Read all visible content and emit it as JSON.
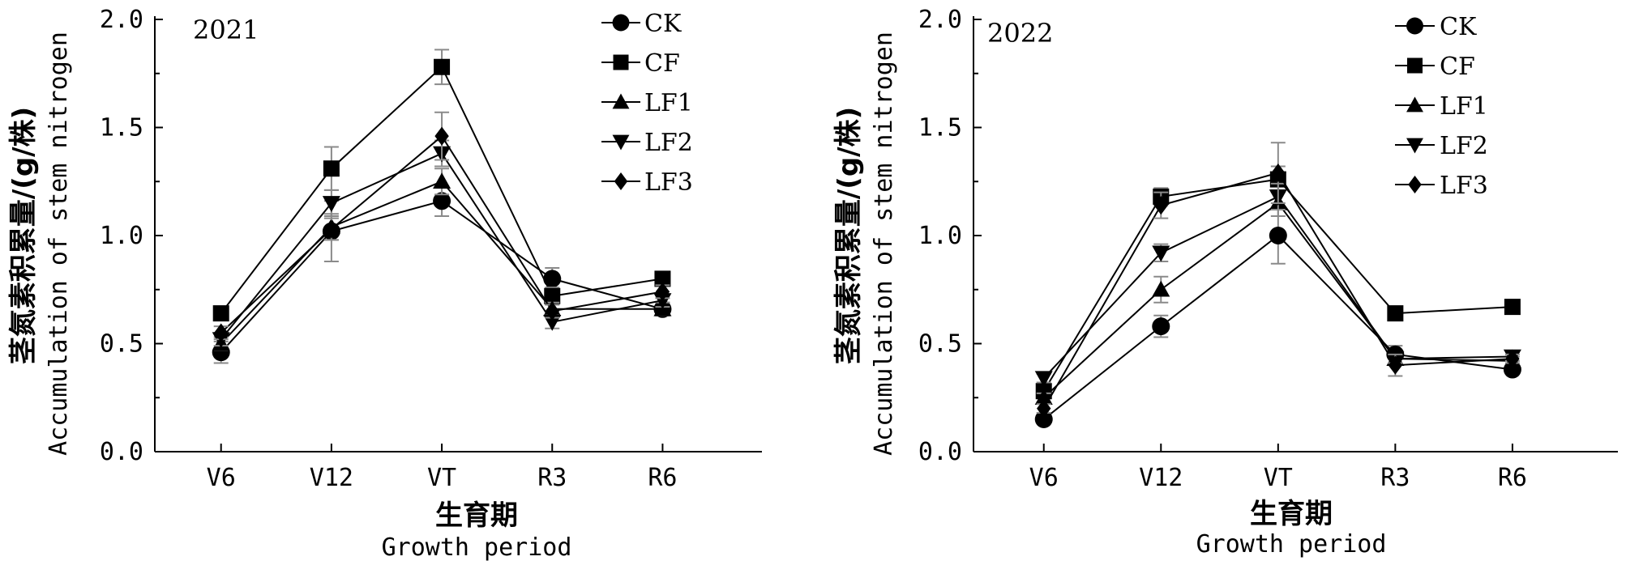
{
  "chart_data": [
    {
      "type": "line",
      "panel_label": "2021",
      "categories": [
        "V6",
        "V12",
        "VT",
        "R3",
        "R6"
      ],
      "ylabel_cn": "茎氮素积累量/(g/株)",
      "ylabel_en": "Accumulation of stem nitrogen",
      "xlabel_cn": "生育期",
      "xlabel_en": "Growth period",
      "ylim": [
        0,
        2.0
      ],
      "yticks": [
        "0.0",
        "0.5",
        "1.0",
        "1.5",
        "2.0"
      ],
      "legend_position": "top-right",
      "series": [
        {
          "name": "CK",
          "marker": "circle",
          "values": [
            0.46,
            1.02,
            1.16,
            0.8,
            0.66
          ],
          "errors": [
            0.05,
            0.14,
            0.07,
            0.05,
            0.03
          ]
        },
        {
          "name": "CF",
          "marker": "square",
          "values": [
            0.64,
            1.31,
            1.78,
            0.72,
            0.8
          ],
          "errors": [
            0.03,
            0.1,
            0.08,
            0.04,
            0.03
          ]
        },
        {
          "name": "LF1",
          "marker": "triangle-up",
          "values": [
            0.5,
            1.04,
            1.25,
            0.66,
            0.66
          ],
          "errors": [
            0.03,
            0.06,
            0.06,
            0.03,
            0.03
          ]
        },
        {
          "name": "LF2",
          "marker": "triangle-down",
          "values": [
            0.52,
            1.15,
            1.38,
            0.6,
            0.7
          ],
          "errors": [
            0.03,
            0.06,
            0.06,
            0.03,
            0.03
          ]
        },
        {
          "name": "LF3",
          "marker": "diamond",
          "values": [
            0.55,
            1.03,
            1.46,
            0.65,
            0.74
          ],
          "errors": [
            0.03,
            0.05,
            0.11,
            0.03,
            0.03
          ]
        }
      ]
    },
    {
      "type": "line",
      "panel_label": "2022",
      "categories": [
        "V6",
        "V12",
        "VT",
        "R3",
        "R6"
      ],
      "ylabel_cn": "茎氮素积累量/(g/株)",
      "ylabel_en": "Accumulation of stem nitrogen",
      "xlabel_cn": "生育期",
      "xlabel_en": "Growth period",
      "ylim": [
        0,
        2.0
      ],
      "yticks": [
        "0.0",
        "0.5",
        "1.0",
        "1.5",
        "2.0"
      ],
      "legend_position": "top-right",
      "series": [
        {
          "name": "CK",
          "marker": "circle",
          "values": [
            0.15,
            0.58,
            1.0,
            0.45,
            0.38
          ],
          "errors": [
            0.02,
            0.05,
            0.13,
            0.04,
            0.02
          ]
        },
        {
          "name": "CF",
          "marker": "square",
          "values": [
            0.28,
            1.18,
            1.26,
            0.64,
            0.67
          ],
          "errors": [
            0.02,
            0.04,
            0.06,
            0.02,
            0.02
          ]
        },
        {
          "name": "LF1",
          "marker": "triangle-up",
          "values": [
            0.25,
            0.75,
            1.15,
            0.43,
            0.42
          ],
          "errors": [
            0.02,
            0.06,
            0.06,
            0.02,
            0.02
          ]
        },
        {
          "name": "LF2",
          "marker": "triangle-down",
          "values": [
            0.34,
            0.92,
            1.18,
            0.43,
            0.44
          ],
          "errors": [
            0.02,
            0.04,
            0.06,
            0.02,
            0.02
          ]
        },
        {
          "name": "LF3",
          "marker": "diamond",
          "values": [
            0.2,
            1.14,
            1.29,
            0.4,
            0.43
          ],
          "errors": [
            0.02,
            0.06,
            0.14,
            0.05,
            0.02
          ]
        }
      ]
    }
  ]
}
